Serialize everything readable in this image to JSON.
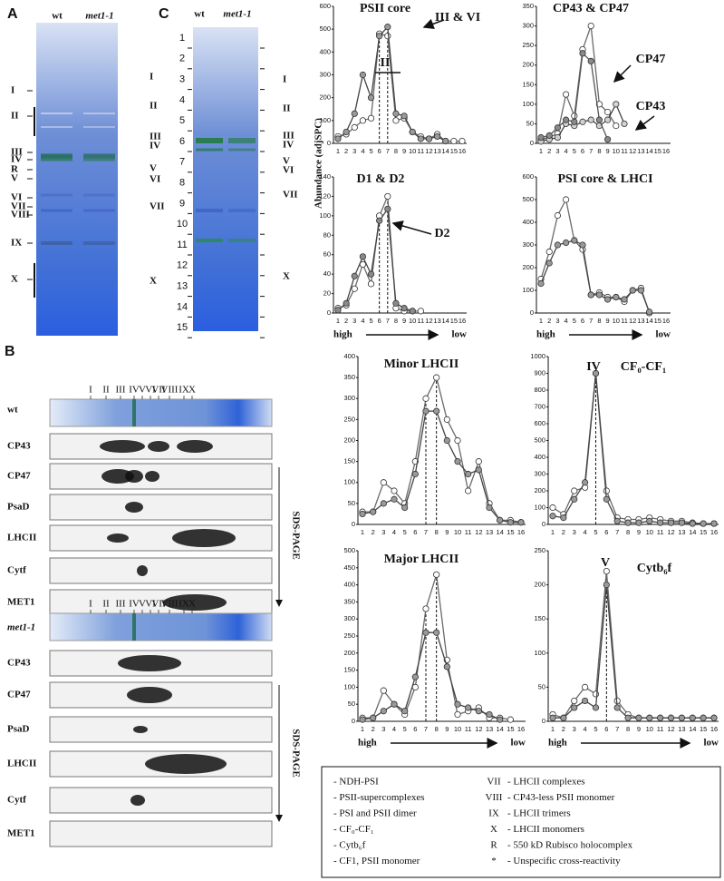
{
  "panel_labels": [
    "A",
    "B",
    "C"
  ],
  "gel_a": {
    "lanes": [
      "wt",
      "met1-1"
    ],
    "bands": [
      "I",
      "II",
      "III",
      "IV",
      "R",
      "V",
      "VI",
      "VII",
      "VIII",
      "IX",
      "X"
    ]
  },
  "gel_c": {
    "lanes": [
      "wt",
      "met1-1"
    ],
    "ladder": [
      "1",
      "2",
      "3",
      "4",
      "5",
      "6",
      "7",
      "8",
      "9",
      "10",
      "11",
      "12",
      "13",
      "14",
      "15"
    ],
    "left": [
      "I",
      "II",
      "III",
      "IV",
      "V",
      "VI",
      "VII",
      "X"
    ],
    "right": [
      "I",
      "II",
      "III",
      "IV",
      "V",
      "VI",
      "VII",
      "X"
    ]
  },
  "blots": [
    {
      "label": "wt",
      "numerals": [
        "I",
        "II",
        "III",
        "IV",
        "V",
        "VI",
        "VII",
        "VIII",
        "IX",
        "X"
      ],
      "rows": [
        "CP43",
        "CP47",
        "PsaD",
        "LHCII",
        "Cytf",
        "MET1"
      ],
      "direction": "SDS-PAGE"
    },
    {
      "label": "met1-1",
      "numerals": [
        "I",
        "II",
        "III",
        "IV",
        "V",
        "VI",
        "VII",
        "VIII",
        "IX",
        "X"
      ],
      "rows": [
        "CP43",
        "CP47",
        "PsaD",
        "LHCII",
        "Cytf",
        "MET1"
      ],
      "direction": "SDS-PAGE"
    }
  ],
  "legend": {
    "left": [
      "- NDH-PSI",
      "- PSII-supercomplexes",
      "- PSI and PSII dimer",
      "- CF₀-CF₁",
      "- Cytb₆f",
      "- CF1, PSII monomer"
    ],
    "right": [
      {
        "key": "VII",
        "text": "- LHCII complexes"
      },
      {
        "key": "VIII",
        "text": "- CP43-less PSII monomer"
      },
      {
        "key": "IX",
        "text": "- LHCII trimers"
      },
      {
        "key": "X",
        "text": "- LHCII monomers"
      },
      {
        "key": "R",
        "text": "- 550 kD  Rubisco holocomplex"
      },
      {
        "key": "*",
        "text": "- Unspecific cross-reactivity"
      }
    ]
  },
  "chart_data": [
    {
      "type": "line",
      "title": "PSII core",
      "ylabel": "Abundance (adjSPC)",
      "categories": [
        "1",
        "2",
        "3",
        "4",
        "5",
        "6",
        "7",
        "8",
        "9",
        "10",
        "11",
        "12",
        "13",
        "14",
        "15",
        "16"
      ],
      "ylim": [
        0,
        600
      ],
      "yticks": [
        0,
        100,
        200,
        300,
        400,
        500,
        600
      ],
      "dashed_x": [
        "6",
        "7"
      ],
      "annotations": [
        "II",
        "III & VI"
      ],
      "series": [
        {
          "color": "#ffffff",
          "values": [
            30,
            40,
            70,
            100,
            110,
            480,
            470,
            100,
            110,
            50,
            30,
            20,
            40,
            10,
            10,
            10
          ]
        },
        {
          "color": "#9a9a9a",
          "values": [
            20,
            50,
            130,
            300,
            200,
            470,
            510,
            130,
            120,
            50,
            20,
            20,
            30,
            10,
            null,
            null
          ]
        }
      ]
    },
    {
      "type": "line",
      "title": "CP43 & CP47",
      "categories": [
        "1",
        "2",
        "3",
        "4",
        "5",
        "6",
        "7",
        "8",
        "9",
        "10",
        "11",
        "12",
        "13",
        "14",
        "15",
        "16"
      ],
      "ylim": [
        0,
        350
      ],
      "yticks": [
        0,
        50,
        100,
        150,
        200,
        250,
        300,
        350
      ],
      "annotations": [
        "CP47",
        "CP43"
      ],
      "series": [
        {
          "color": "#ffffff",
          "values": [
            10,
            15,
            25,
            125,
            70,
            240,
            300,
            100,
            80,
            45,
            null,
            null,
            null,
            null,
            null,
            null
          ]
        },
        {
          "color": "#d0d0d0",
          "values": [
            5,
            10,
            15,
            50,
            45,
            55,
            60,
            45,
            60,
            100,
            50,
            null,
            null,
            null,
            null,
            null
          ]
        },
        {
          "color": "#8a8a8a",
          "values": [
            15,
            20,
            40,
            60,
            55,
            230,
            210,
            60,
            10,
            null,
            null,
            null,
            null,
            null,
            null,
            null
          ]
        }
      ]
    },
    {
      "type": "line",
      "title": "D1 & D2",
      "categories": [
        "1",
        "2",
        "3",
        "4",
        "5",
        "6",
        "7",
        "8",
        "9",
        "10",
        "11",
        "12",
        "13",
        "14",
        "15",
        "16"
      ],
      "ylim": [
        0,
        140
      ],
      "yticks": [
        0,
        20,
        40,
        60,
        80,
        100,
        120,
        140
      ],
      "dashed_x": [
        "6",
        "7"
      ],
      "annotations": [
        "D2"
      ],
      "axis_note": [
        "high",
        "low"
      ],
      "series": [
        {
          "color": "#ffffff",
          "values": [
            5,
            8,
            25,
            50,
            30,
            100,
            120,
            5,
            2,
            2,
            2,
            null,
            null,
            null,
            null,
            null
          ]
        },
        {
          "color": "#8a8a8a",
          "values": [
            3,
            10,
            38,
            58,
            40,
            95,
            107,
            10,
            5,
            2,
            null,
            null,
            null,
            null,
            null,
            null
          ]
        }
      ]
    },
    {
      "type": "line",
      "title": "PSI core & LHCI",
      "categories": [
        "1",
        "2",
        "3",
        "4",
        "5",
        "6",
        "7",
        "8",
        "9",
        "10",
        "11",
        "12",
        "13",
        "14",
        "15",
        "16"
      ],
      "ylim": [
        0,
        600
      ],
      "yticks": [
        0,
        100,
        200,
        300,
        400,
        500,
        600
      ],
      "axis_note": [
        "high",
        "low"
      ],
      "series": [
        {
          "color": "#ffffff",
          "values": [
            150,
            270,
            430,
            500,
            320,
            280,
            80,
            90,
            70,
            70,
            50,
            100,
            110,
            0,
            null,
            null
          ]
        },
        {
          "color": "#9a9a9a",
          "values": [
            130,
            220,
            300,
            310,
            320,
            300,
            80,
            80,
            60,
            70,
            60,
            100,
            100,
            5,
            null,
            null
          ]
        }
      ]
    },
    {
      "type": "line",
      "title": "Minor LHCII",
      "categories": [
        "1",
        "2",
        "3",
        "4",
        "5",
        "6",
        "7",
        "8",
        "9",
        "10",
        "11",
        "12",
        "13",
        "14",
        "15",
        "16"
      ],
      "ylim": [
        0,
        400
      ],
      "yticks": [
        0,
        50,
        100,
        150,
        200,
        250,
        300,
        350,
        400
      ],
      "dashed_x": [
        "7",
        "8"
      ],
      "series": [
        {
          "color": "#ffffff",
          "values": [
            30,
            30,
            100,
            80,
            50,
            150,
            300,
            350,
            250,
            200,
            80,
            150,
            50,
            10,
            10,
            5
          ]
        },
        {
          "color": "#9a9a9a",
          "values": [
            25,
            30,
            50,
            60,
            40,
            120,
            270,
            270,
            200,
            150,
            120,
            130,
            40,
            10,
            5,
            5
          ]
        }
      ]
    },
    {
      "type": "line",
      "title": "CF₀-CF₁",
      "categories": [
        "1",
        "2",
        "3",
        "4",
        "5",
        "6",
        "7",
        "8",
        "9",
        "10",
        "11",
        "12",
        "13",
        "14",
        "15",
        "16"
      ],
      "ylim": [
        0,
        1000
      ],
      "yticks": [
        0,
        100,
        200,
        300,
        400,
        500,
        600,
        700,
        800,
        900,
        1000
      ],
      "dashed_x": [
        "5"
      ],
      "annotations": [
        "IV"
      ],
      "series": [
        {
          "color": "#ffffff",
          "values": [
            100,
            60,
            200,
            220,
            900,
            200,
            40,
            30,
            30,
            40,
            30,
            20,
            20,
            10,
            5,
            5
          ]
        },
        {
          "color": "#9a9a9a",
          "values": [
            50,
            40,
            150,
            250,
            900,
            150,
            20,
            10,
            10,
            20,
            10,
            10,
            10,
            5,
            5,
            5
          ]
        }
      ]
    },
    {
      "type": "line",
      "title": "Major LHCII",
      "categories": [
        "1",
        "2",
        "3",
        "4",
        "5",
        "6",
        "7",
        "8",
        "9",
        "10",
        "11",
        "12",
        "13",
        "14",
        "15",
        "16"
      ],
      "ylim": [
        0,
        500
      ],
      "yticks": [
        0,
        50,
        100,
        150,
        200,
        250,
        300,
        350,
        400,
        450,
        500
      ],
      "dashed_x": [
        "7",
        "8"
      ],
      "axis_note": [
        "high",
        "low"
      ],
      "series": [
        {
          "color": "#ffffff",
          "values": [
            10,
            10,
            90,
            50,
            20,
            100,
            330,
            430,
            180,
            20,
            30,
            40,
            10,
            10,
            5,
            null
          ]
        },
        {
          "color": "#9a9a9a",
          "values": [
            5,
            10,
            30,
            50,
            30,
            130,
            260,
            260,
            160,
            50,
            40,
            30,
            20,
            5,
            null,
            null
          ]
        }
      ]
    },
    {
      "type": "line",
      "title": "Cytb₆f",
      "categories": [
        "1",
        "2",
        "3",
        "4",
        "5",
        "6",
        "7",
        "8",
        "9",
        "10",
        "11",
        "12",
        "13",
        "14",
        "15",
        "16"
      ],
      "ylim": [
        0,
        250
      ],
      "yticks": [
        0,
        50,
        100,
        150,
        200,
        250
      ],
      "dashed_x": [
        "6"
      ],
      "annotations": [
        "V"
      ],
      "axis_note": [
        "high",
        "low"
      ],
      "series": [
        {
          "color": "#ffffff",
          "values": [
            10,
            5,
            30,
            50,
            40,
            220,
            30,
            10,
            5,
            5,
            5,
            5,
            5,
            5,
            5,
            5
          ]
        },
        {
          "color": "#9a9a9a",
          "values": [
            5,
            5,
            20,
            30,
            20,
            200,
            20,
            5,
            5,
            5,
            5,
            5,
            5,
            5,
            5,
            5
          ]
        }
      ]
    }
  ]
}
